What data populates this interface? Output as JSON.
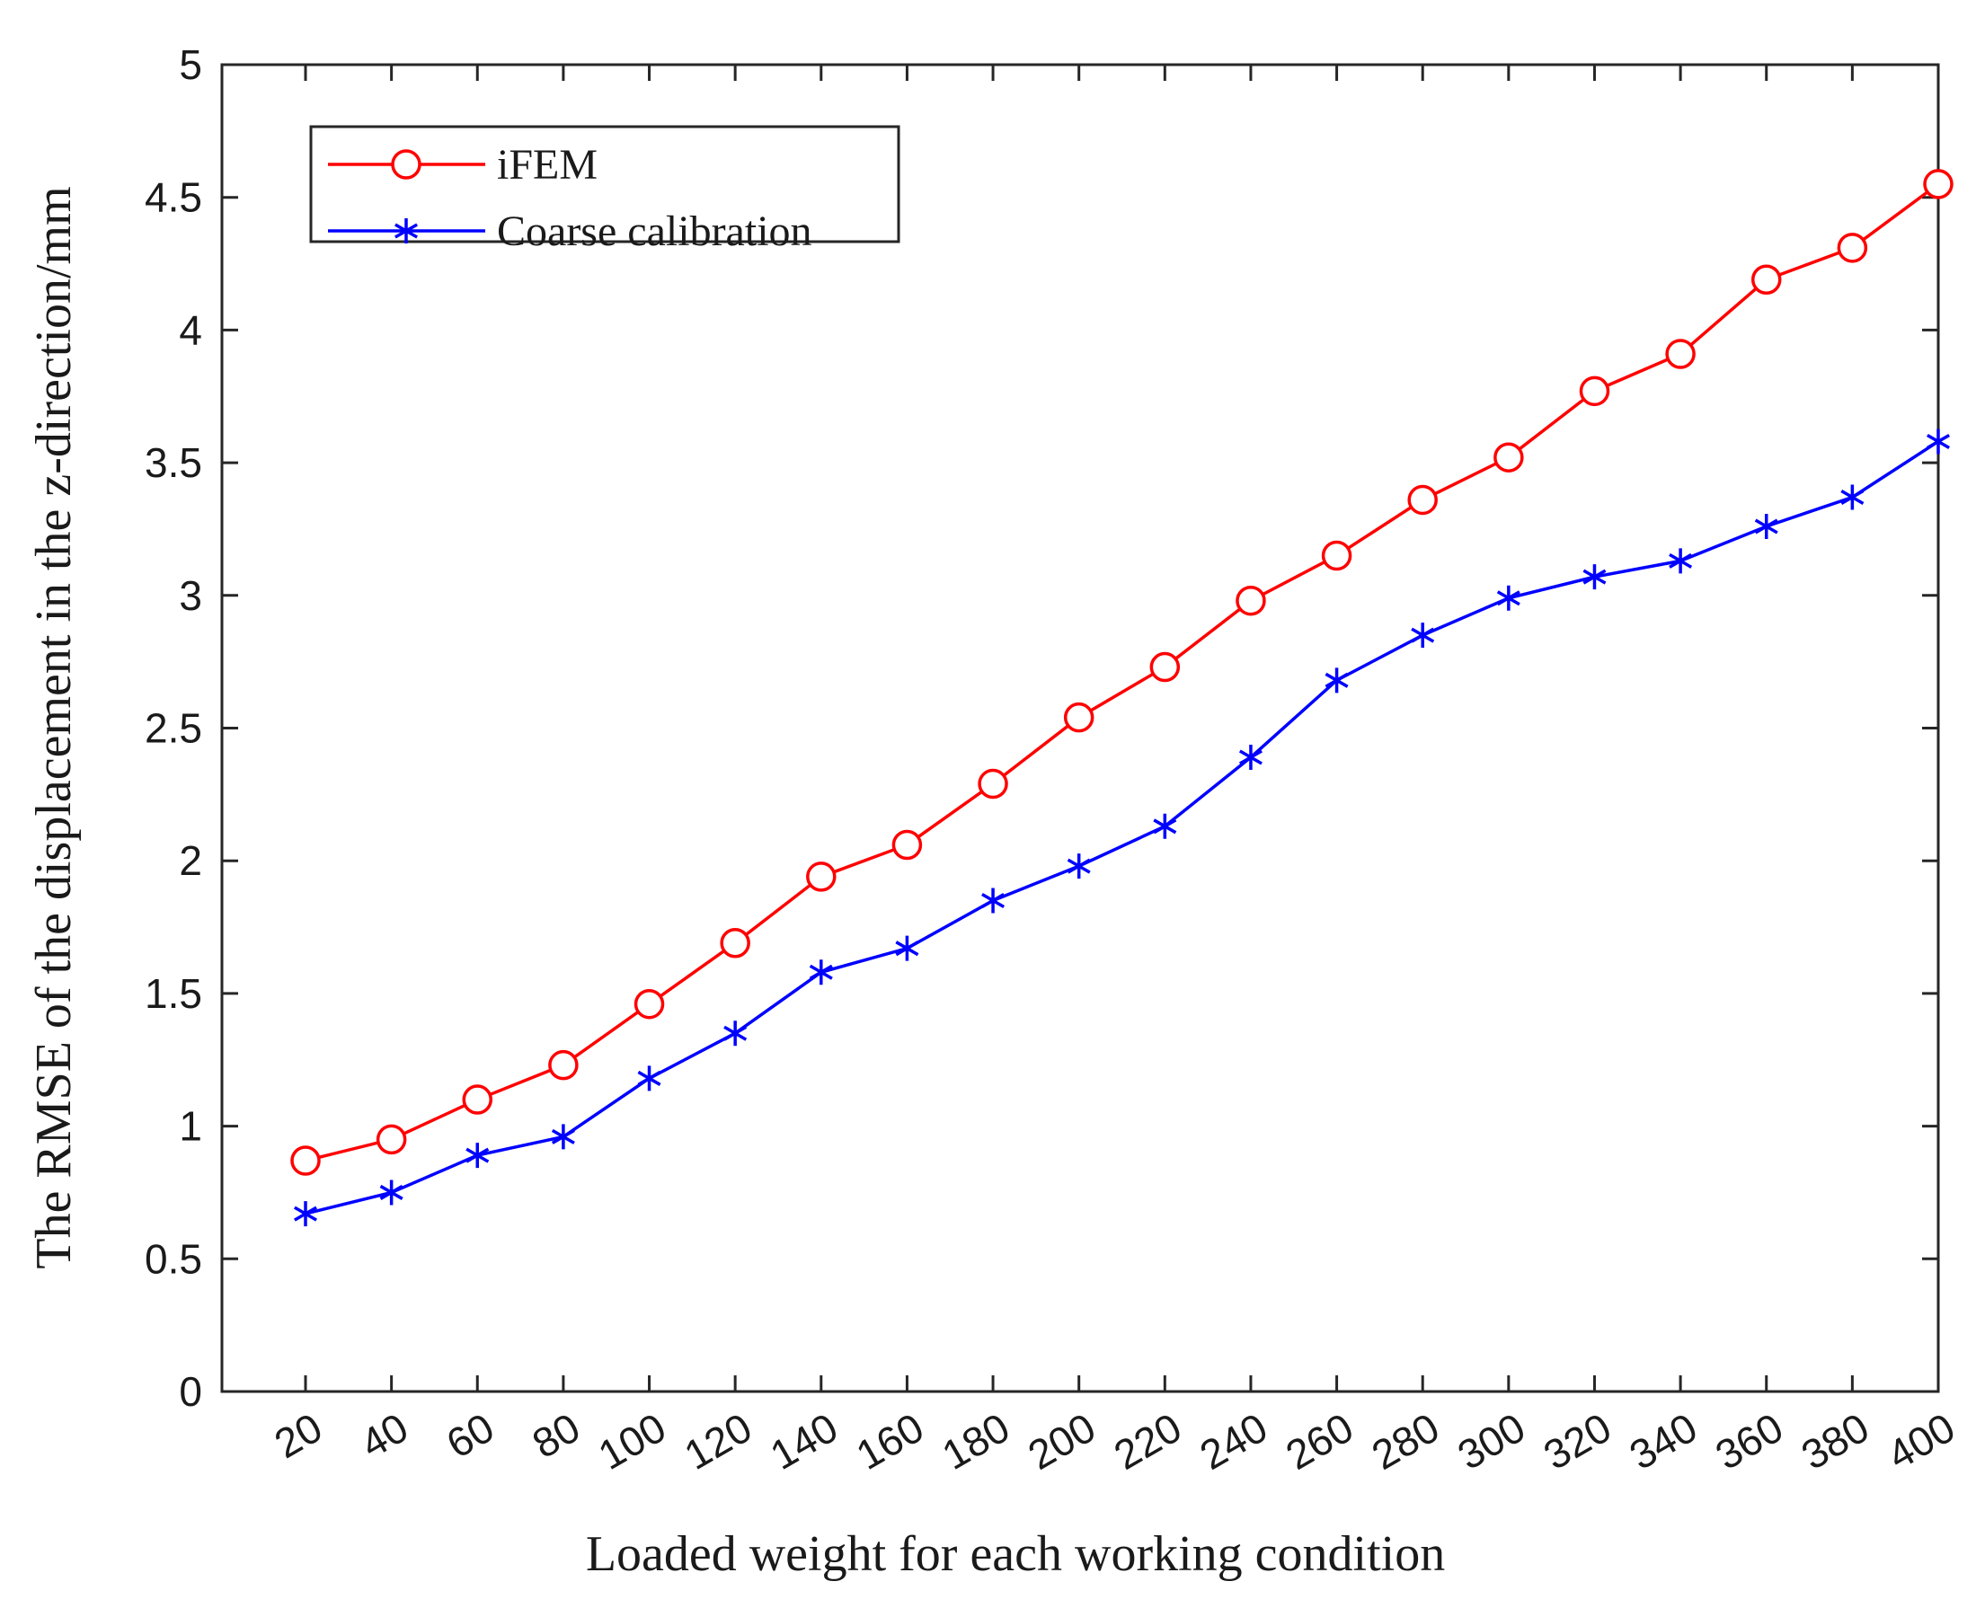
{
  "chart_data": {
    "type": "line",
    "title": "",
    "xlabel": "Loaded weight for each working condition",
    "ylabel": "The RMSE of the displacement in the z-direction/mm",
    "x": [
      20,
      40,
      60,
      80,
      100,
      120,
      140,
      160,
      180,
      200,
      220,
      240,
      260,
      280,
      300,
      320,
      340,
      360,
      380,
      400
    ],
    "x_tick_labels": [
      "20",
      "40",
      "60",
      "80",
      "100",
      "120",
      "140",
      "160",
      "180",
      "200",
      "220",
      "240",
      "260",
      "280",
      "300",
      "320",
      "340",
      "360",
      "380",
      "400"
    ],
    "ylim": [
      0,
      5
    ],
    "y_ticks": [
      0,
      0.5,
      1,
      1.5,
      2,
      2.5,
      3,
      3.5,
      4,
      4.5,
      5
    ],
    "y_tick_labels": [
      "0",
      "0.5",
      "1",
      "1.5",
      "2",
      "2.5",
      "3",
      "3.5",
      "4",
      "4.5",
      "5"
    ],
    "grid": false,
    "legend_position": "top-left",
    "series": [
      {
        "name": "iFEM",
        "color": "#ff0000",
        "marker": "circle",
        "values": [
          0.87,
          0.95,
          1.1,
          1.23,
          1.46,
          1.69,
          1.94,
          2.06,
          2.29,
          2.54,
          2.73,
          2.98,
          3.15,
          3.36,
          3.52,
          3.77,
          3.91,
          4.19,
          4.31,
          4.55
        ]
      },
      {
        "name": "Coarse calibration",
        "color": "#0000ff",
        "marker": "asterisk",
        "values": [
          0.67,
          0.75,
          0.89,
          0.96,
          1.18,
          1.35,
          1.58,
          1.67,
          1.85,
          1.98,
          2.13,
          2.39,
          2.68,
          2.85,
          2.99,
          3.07,
          3.13,
          3.26,
          3.37,
          3.58
        ]
      }
    ]
  }
}
